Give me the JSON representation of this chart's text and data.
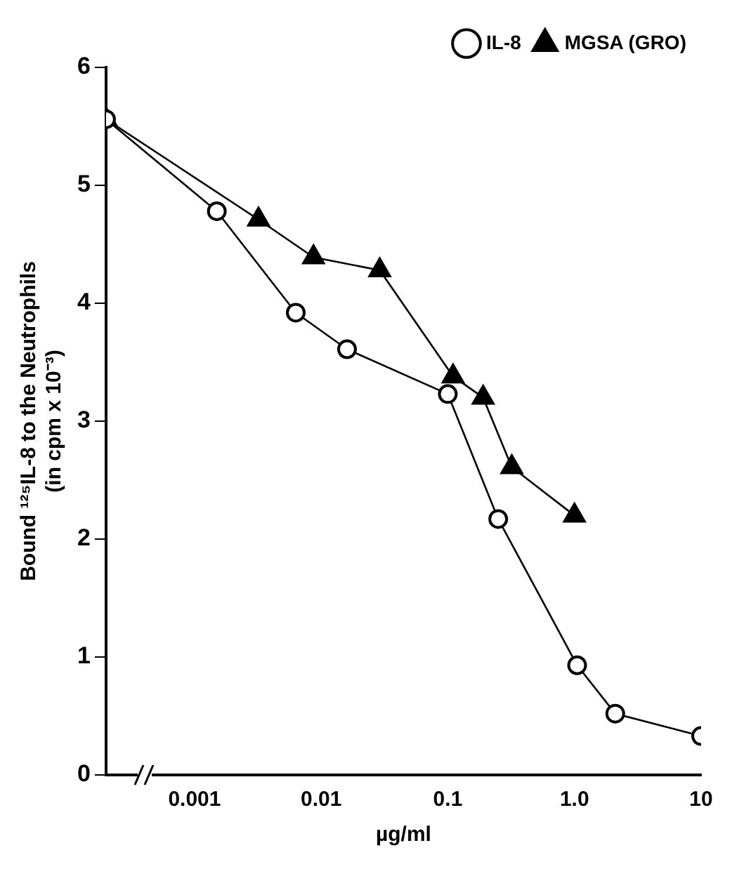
{
  "chart_data": {
    "type": "line",
    "xlabel": "µg/ml",
    "ylabel": "Bound ¹²⁵IL-8 to the Neutrophils\n(in cpm x 10⁻³)",
    "log": "x",
    "xlim": [
      0.0002,
      10
    ],
    "xticks": [
      {
        "value": 0.001,
        "label": "0.001"
      },
      {
        "value": 0.01,
        "label": "0.01"
      },
      {
        "value": 0.1,
        "label": "0.1"
      },
      {
        "value": 1,
        "label": "1.0"
      },
      {
        "value": 10,
        "label": "10"
      }
    ],
    "ylim": [
      0,
      6
    ],
    "yticks": [
      0,
      1,
      2,
      3,
      4,
      5,
      6
    ],
    "grid": false,
    "legend": "top right",
    "line_style": "solid",
    "series": [
      {
        "name": "IL-8",
        "color": "#000000",
        "marker": "circle",
        "x": [
          0.0002,
          0.0015,
          0.0063,
          0.016,
          0.1,
          0.25,
          1.05,
          2.1,
          10
        ],
        "values": [
          5.56,
          4.78,
          3.92,
          3.61,
          3.23,
          2.17,
          0.93,
          0.52,
          0.33
        ]
      },
      {
        "name": "MGSA (GRO)",
        "color": "#000000",
        "marker": "triangle",
        "x": [
          0.0002,
          0.0032,
          0.0087,
          0.029,
          0.11,
          0.19,
          0.32,
          1.0
        ],
        "values": [
          5.56,
          4.71,
          4.39,
          4.28,
          3.38,
          3.2,
          2.61,
          2.2
        ]
      }
    ]
  }
}
